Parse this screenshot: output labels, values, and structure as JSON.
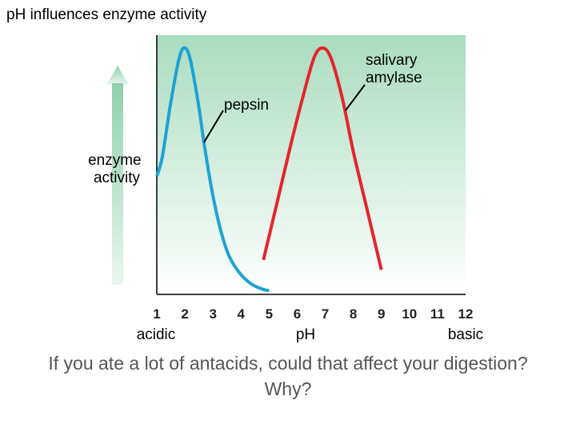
{
  "title": "pH influences enzyme activity",
  "question": {
    "line1": "If you ate a lot of antacids, could that affect your digestion?",
    "line2": "Why?"
  },
  "colors": {
    "pepsin": "#1ea3d4",
    "salivary_amylase": "#e3262b",
    "background_top": "#a9dcbf",
    "background_bottom": "#ffffff",
    "arrow": "#8fd1ac"
  },
  "chart_data": {
    "type": "line",
    "title": "",
    "xlabel": "pH",
    "ylabel": "enzyme activity",
    "x_ticks": [
      1,
      2,
      3,
      4,
      5,
      6,
      7,
      8,
      9,
      10,
      11,
      12
    ],
    "xlim": [
      1,
      12
    ],
    "ylim": [
      0,
      100
    ],
    "x_end_labels": {
      "left": "acidic",
      "right": "basic"
    },
    "grid": false,
    "series": [
      {
        "name": "pepsin",
        "points": [
          [
            1.0,
            48
          ],
          [
            1.2,
            56
          ],
          [
            1.5,
            78
          ],
          [
            1.8,
            96
          ],
          [
            2.0,
            100
          ],
          [
            2.2,
            95
          ],
          [
            2.5,
            76
          ],
          [
            2.7,
            60
          ],
          [
            3.0,
            40
          ],
          [
            3.3,
            25
          ],
          [
            3.6,
            15
          ],
          [
            4.0,
            8
          ],
          [
            4.4,
            4
          ],
          [
            4.8,
            2
          ],
          [
            5.0,
            1.5
          ]
        ]
      },
      {
        "name": "salivary amylase",
        "points": [
          [
            4.8,
            14
          ],
          [
            5.3,
            38
          ],
          [
            5.8,
            62
          ],
          [
            6.2,
            80
          ],
          [
            6.6,
            96
          ],
          [
            6.9,
            100
          ],
          [
            7.2,
            96
          ],
          [
            7.6,
            80
          ],
          [
            8.0,
            58
          ],
          [
            8.5,
            34
          ],
          [
            9.0,
            10
          ]
        ]
      }
    ],
    "annotations": [
      {
        "text": "pepsin",
        "series": "pepsin"
      },
      {
        "text": "salivary amylase",
        "series": "salivary amylase",
        "lines": [
          "salivary",
          "amylase"
        ]
      }
    ]
  }
}
